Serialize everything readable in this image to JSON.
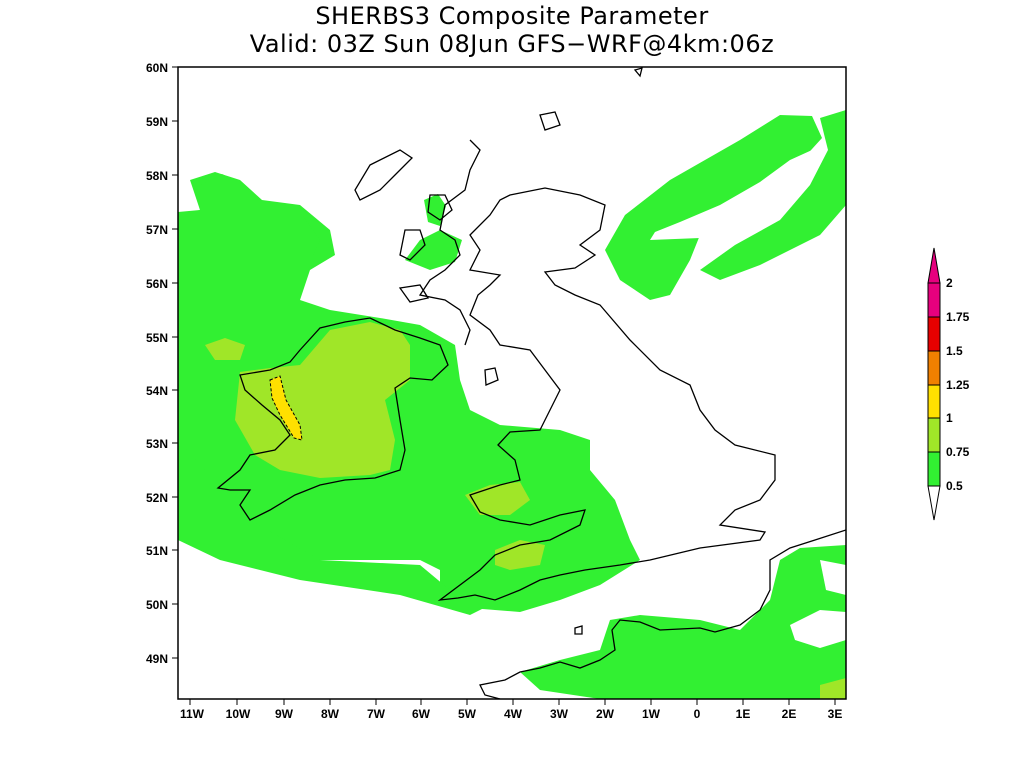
{
  "map": {
    "title_line1": "SHERBS3 Composite Parameter",
    "title_line2": "Valid: 03Z Sun 08Jun GFS−WRF@4km:06z",
    "lat_labels": [
      "60N",
      "59N",
      "58N",
      "57N",
      "56N",
      "55N",
      "54N",
      "53N",
      "52N",
      "51N",
      "50N",
      "49N"
    ],
    "lon_labels": [
      "11W",
      "10W",
      "9W",
      "8W",
      "7W",
      "6W",
      "5W",
      "4W",
      "3W",
      "2W",
      "1W",
      "0",
      "1E",
      "2E",
      "3E"
    ],
    "colorbar": {
      "labels": [
        "2",
        "1.75",
        "1.5",
        "1.25",
        "1",
        "0.75",
        "0.5"
      ],
      "colors": [
        "#e6007e",
        "#e6007e",
        "#e60000",
        "#f08000",
        "#ffe000",
        "#a0e628",
        "#32f032"
      ]
    },
    "fill_colors": {
      "green": "#32f032",
      "light_green": "#a0e628",
      "yellow": "#ffe000",
      "land_outline": "#000000"
    }
  }
}
